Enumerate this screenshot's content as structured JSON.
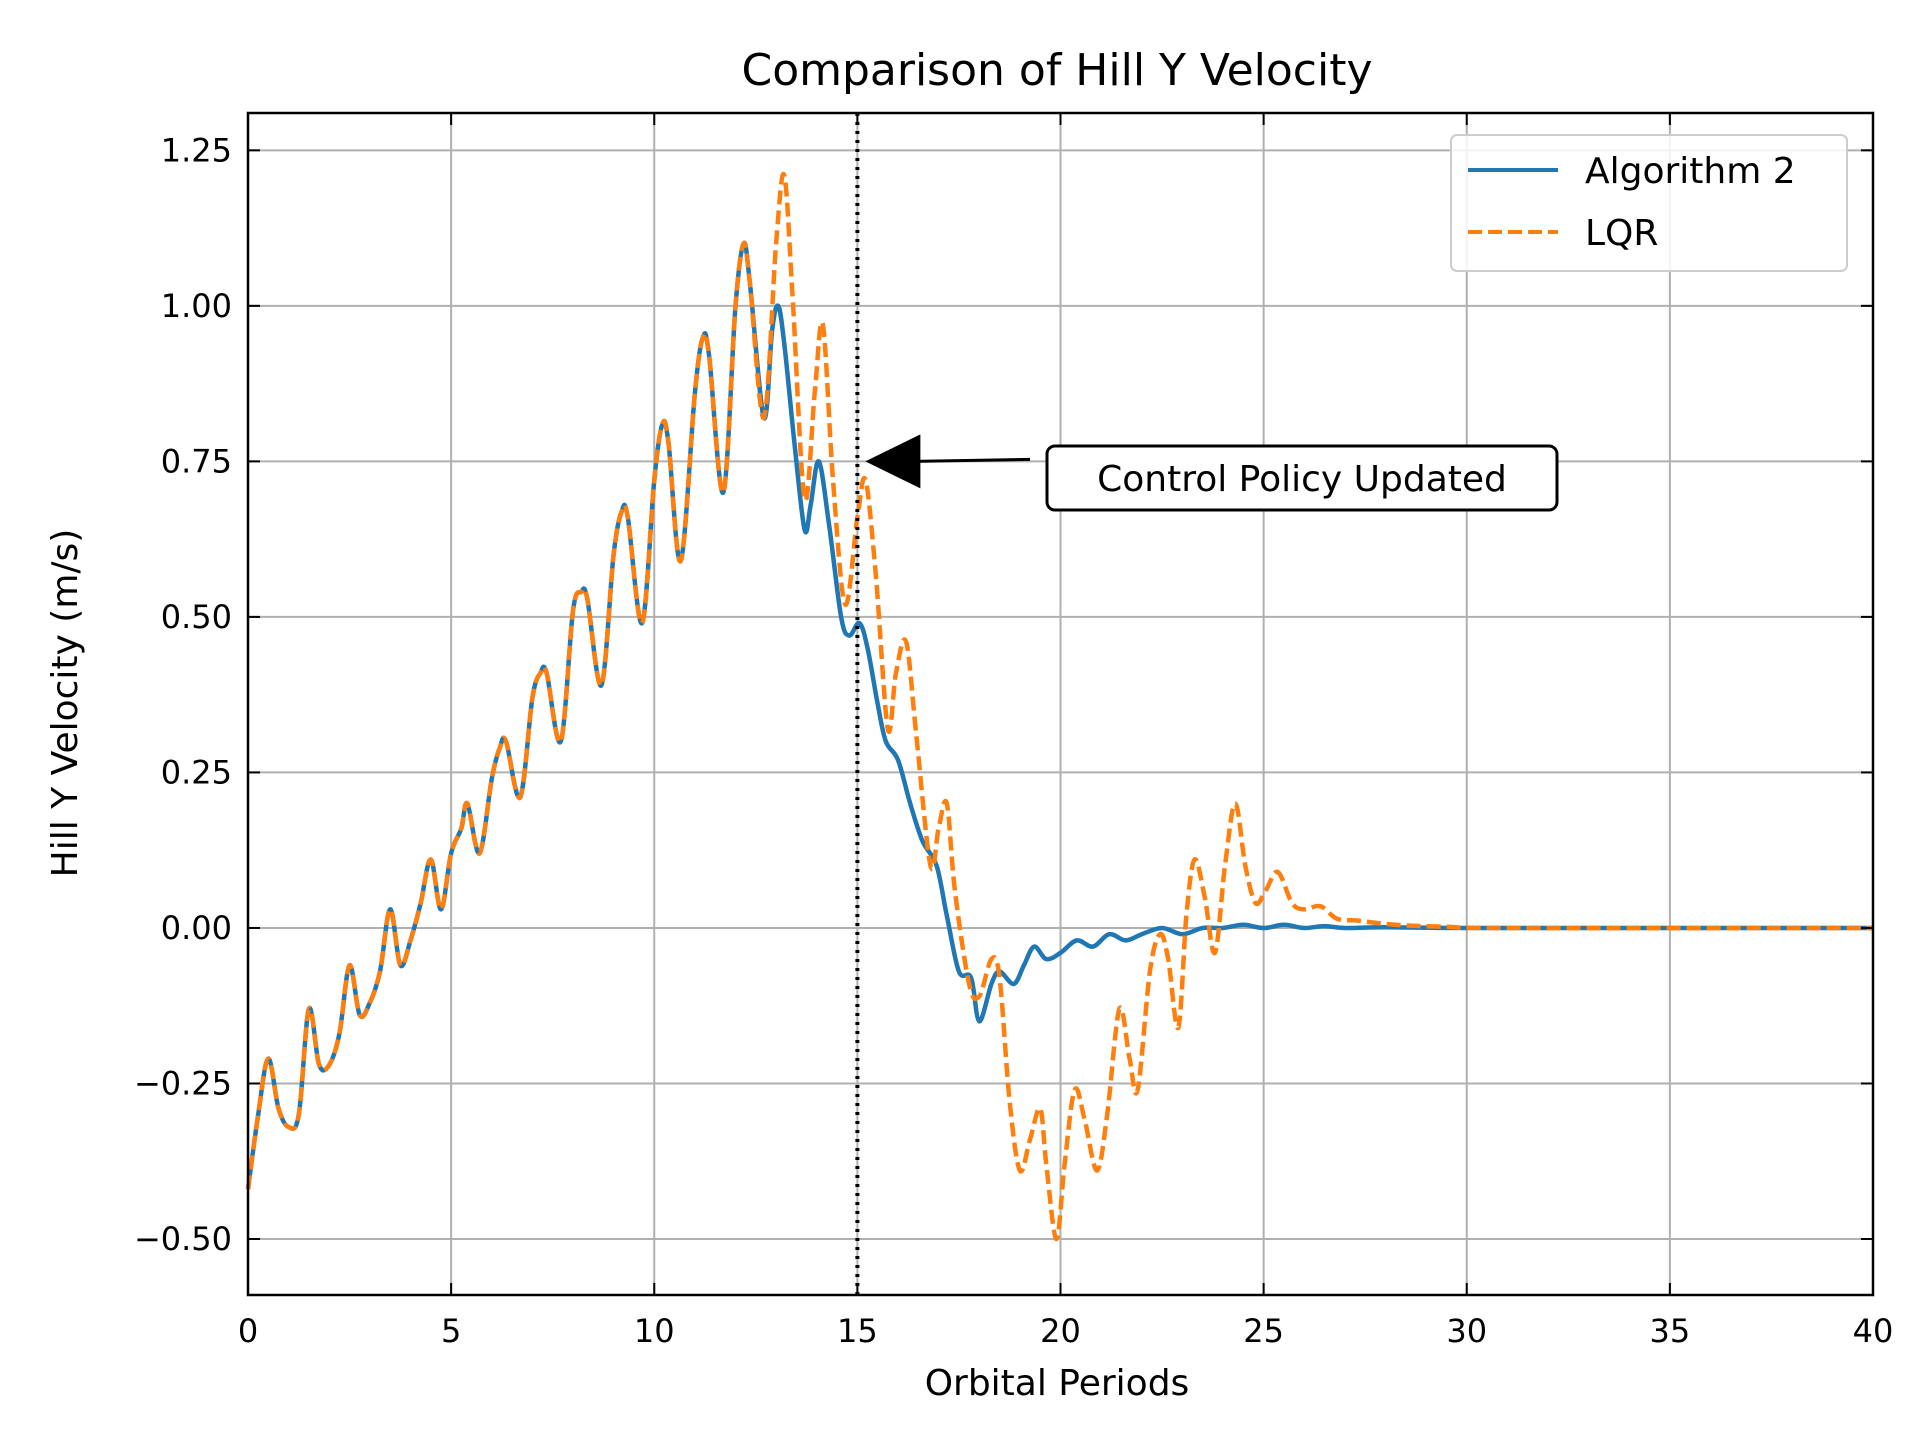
{
  "chart_data": {
    "type": "line",
    "title": "Comparison of Hill Y Velocity",
    "xlabel": "Orbital Periods",
    "ylabel": "Hill Y Velocity (m/s)",
    "xlim": [
      0,
      40
    ],
    "ylim": [
      -0.59,
      1.31
    ],
    "xticks": [
      0,
      5,
      10,
      15,
      20,
      25,
      30,
      35,
      40
    ],
    "xtick_labels": [
      "0",
      "5",
      "10",
      "15",
      "20",
      "25",
      "30",
      "35",
      "40"
    ],
    "yticks": [
      -0.5,
      -0.25,
      0,
      0.25,
      0.5,
      0.75,
      1.0,
      1.25
    ],
    "ytick_labels": [
      "−0.50",
      "−0.25",
      "0.00",
      "0.25",
      "0.50",
      "0.75",
      "1.00",
      "1.25"
    ],
    "grid": true,
    "legend_position": "top-right",
    "vline": {
      "x": 15,
      "style": "dotted",
      "color": "#000000"
    },
    "annotation": {
      "text": "Control Policy Updated",
      "arrow_to": [
        15,
        0.75
      ],
      "text_at": [
        19.6,
        0.725
      ]
    },
    "series": [
      {
        "name": "Algorithm 2",
        "color": "#1f77b4",
        "style": "solid",
        "points": [
          [
            0,
            -0.42
          ],
          [
            0.25,
            -0.3
          ],
          [
            0.5,
            -0.21
          ],
          [
            0.75,
            -0.29
          ],
          [
            1.0,
            -0.32
          ],
          [
            1.25,
            -0.3
          ],
          [
            1.5,
            -0.13
          ],
          [
            1.75,
            -0.22
          ],
          [
            2.0,
            -0.22
          ],
          [
            2.25,
            -0.17
          ],
          [
            2.5,
            -0.06
          ],
          [
            2.75,
            -0.14
          ],
          [
            3.0,
            -0.12
          ],
          [
            3.25,
            -0.07
          ],
          [
            3.5,
            0.03
          ],
          [
            3.75,
            -0.06
          ],
          [
            4.0,
            -0.02
          ],
          [
            4.25,
            0.04
          ],
          [
            4.5,
            0.11
          ],
          [
            4.75,
            0.03
          ],
          [
            5.0,
            0.12
          ],
          [
            5.25,
            0.16
          ],
          [
            5.4,
            0.2
          ],
          [
            5.7,
            0.12
          ],
          [
            6.0,
            0.24
          ],
          [
            6.2,
            0.29
          ],
          [
            6.35,
            0.3
          ],
          [
            6.7,
            0.21
          ],
          [
            7.0,
            0.37
          ],
          [
            7.2,
            0.41
          ],
          [
            7.35,
            0.41
          ],
          [
            7.7,
            0.3
          ],
          [
            8.0,
            0.51
          ],
          [
            8.2,
            0.54
          ],
          [
            8.35,
            0.53
          ],
          [
            8.7,
            0.39
          ],
          [
            9.0,
            0.6
          ],
          [
            9.2,
            0.67
          ],
          [
            9.35,
            0.66
          ],
          [
            9.7,
            0.49
          ],
          [
            10.0,
            0.72
          ],
          [
            10.2,
            0.81
          ],
          [
            10.35,
            0.78
          ],
          [
            10.65,
            0.59
          ],
          [
            11.0,
            0.86
          ],
          [
            11.2,
            0.95
          ],
          [
            11.35,
            0.92
          ],
          [
            11.7,
            0.7
          ],
          [
            12.0,
            1.0
          ],
          [
            12.2,
            1.1
          ],
          [
            12.35,
            1.04
          ],
          [
            12.7,
            0.82
          ],
          [
            12.9,
            0.96
          ],
          [
            13.05,
            1.0
          ],
          [
            13.2,
            0.94
          ],
          [
            13.45,
            0.78
          ],
          [
            13.7,
            0.64
          ],
          [
            13.85,
            0.68
          ],
          [
            14.05,
            0.75
          ],
          [
            14.3,
            0.65
          ],
          [
            14.6,
            0.5
          ],
          [
            14.8,
            0.47
          ],
          [
            15.05,
            0.49
          ],
          [
            15.25,
            0.45
          ],
          [
            15.5,
            0.36
          ],
          [
            15.7,
            0.3
          ],
          [
            16.0,
            0.27
          ],
          [
            16.3,
            0.2
          ],
          [
            16.6,
            0.14
          ],
          [
            16.95,
            0.1
          ],
          [
            17.2,
            0.02
          ],
          [
            17.5,
            -0.07
          ],
          [
            17.8,
            -0.08
          ],
          [
            18.0,
            -0.15
          ],
          [
            18.3,
            -0.09
          ],
          [
            18.5,
            -0.07
          ],
          [
            18.85,
            -0.09
          ],
          [
            19.1,
            -0.06
          ],
          [
            19.35,
            -0.03
          ],
          [
            19.65,
            -0.05
          ],
          [
            20.0,
            -0.04
          ],
          [
            20.4,
            -0.02
          ],
          [
            20.8,
            -0.03
          ],
          [
            21.2,
            -0.01
          ],
          [
            21.6,
            -0.02
          ],
          [
            22.0,
            -0.01
          ],
          [
            22.5,
            0.0
          ],
          [
            23.0,
            -0.01
          ],
          [
            23.5,
            0.0
          ],
          [
            24.0,
            0.0
          ],
          [
            24.5,
            0.005
          ],
          [
            25.0,
            0.0
          ],
          [
            25.5,
            0.005
          ],
          [
            26.0,
            0.0
          ],
          [
            26.5,
            0.003
          ],
          [
            27.0,
            0.0
          ],
          [
            28.0,
            0.001
          ],
          [
            30.0,
            0.0
          ],
          [
            35.0,
            0.0
          ],
          [
            40.0,
            0.0
          ]
        ]
      },
      {
        "name": "LQR",
        "color": "#ff7f0e",
        "style": "dashed",
        "points": [
          [
            0,
            -0.42
          ],
          [
            0.25,
            -0.3
          ],
          [
            0.5,
            -0.21
          ],
          [
            0.75,
            -0.29
          ],
          [
            1.0,
            -0.32
          ],
          [
            1.25,
            -0.3
          ],
          [
            1.5,
            -0.13
          ],
          [
            1.75,
            -0.22
          ],
          [
            2.0,
            -0.22
          ],
          [
            2.25,
            -0.17
          ],
          [
            2.5,
            -0.06
          ],
          [
            2.75,
            -0.14
          ],
          [
            3.0,
            -0.12
          ],
          [
            3.25,
            -0.07
          ],
          [
            3.5,
            0.03
          ],
          [
            3.75,
            -0.06
          ],
          [
            4.0,
            -0.02
          ],
          [
            4.25,
            0.04
          ],
          [
            4.5,
            0.11
          ],
          [
            4.75,
            0.03
          ],
          [
            5.0,
            0.12
          ],
          [
            5.25,
            0.16
          ],
          [
            5.4,
            0.2
          ],
          [
            5.7,
            0.12
          ],
          [
            6.0,
            0.24
          ],
          [
            6.2,
            0.29
          ],
          [
            6.35,
            0.3
          ],
          [
            6.7,
            0.21
          ],
          [
            7.0,
            0.37
          ],
          [
            7.2,
            0.41
          ],
          [
            7.35,
            0.41
          ],
          [
            7.7,
            0.3
          ],
          [
            8.0,
            0.51
          ],
          [
            8.2,
            0.54
          ],
          [
            8.35,
            0.53
          ],
          [
            8.7,
            0.39
          ],
          [
            9.0,
            0.6
          ],
          [
            9.2,
            0.67
          ],
          [
            9.35,
            0.66
          ],
          [
            9.7,
            0.49
          ],
          [
            10.0,
            0.72
          ],
          [
            10.2,
            0.81
          ],
          [
            10.35,
            0.78
          ],
          [
            10.65,
            0.59
          ],
          [
            11.0,
            0.86
          ],
          [
            11.2,
            0.95
          ],
          [
            11.35,
            0.92
          ],
          [
            11.7,
            0.7
          ],
          [
            12.0,
            1.0
          ],
          [
            12.2,
            1.1
          ],
          [
            12.35,
            1.04
          ],
          [
            12.7,
            0.82
          ],
          [
            13.0,
            1.1
          ],
          [
            13.2,
            1.21
          ],
          [
            13.4,
            1.02
          ],
          [
            13.7,
            0.69
          ],
          [
            13.95,
            0.86
          ],
          [
            14.15,
            0.97
          ],
          [
            14.4,
            0.72
          ],
          [
            14.7,
            0.52
          ],
          [
            15.0,
            0.66
          ],
          [
            15.2,
            0.72
          ],
          [
            15.45,
            0.57
          ],
          [
            15.75,
            0.32
          ],
          [
            15.95,
            0.41
          ],
          [
            16.2,
            0.46
          ],
          [
            16.45,
            0.31
          ],
          [
            16.8,
            0.1
          ],
          [
            17.0,
            0.16
          ],
          [
            17.2,
            0.2
          ],
          [
            17.4,
            0.06
          ],
          [
            17.75,
            -0.09
          ],
          [
            18.0,
            -0.11
          ],
          [
            18.3,
            -0.05
          ],
          [
            18.5,
            -0.08
          ],
          [
            18.75,
            -0.28
          ],
          [
            19.0,
            -0.39
          ],
          [
            19.25,
            -0.34
          ],
          [
            19.5,
            -0.29
          ],
          [
            19.65,
            -0.38
          ],
          [
            19.9,
            -0.5
          ],
          [
            20.1,
            -0.38
          ],
          [
            20.35,
            -0.26
          ],
          [
            20.6,
            -0.31
          ],
          [
            20.9,
            -0.39
          ],
          [
            21.15,
            -0.3
          ],
          [
            21.45,
            -0.13
          ],
          [
            21.7,
            -0.21
          ],
          [
            21.9,
            -0.26
          ],
          [
            22.2,
            -0.07
          ],
          [
            22.45,
            -0.01
          ],
          [
            22.65,
            -0.05
          ],
          [
            22.9,
            -0.16
          ],
          [
            23.1,
            0.02
          ],
          [
            23.3,
            0.11
          ],
          [
            23.55,
            0.05
          ],
          [
            23.8,
            -0.04
          ],
          [
            24.05,
            0.1
          ],
          [
            24.3,
            0.2
          ],
          [
            24.55,
            0.1
          ],
          [
            24.8,
            0.04
          ],
          [
            25.05,
            0.06
          ],
          [
            25.35,
            0.09
          ],
          [
            25.7,
            0.04
          ],
          [
            26.0,
            0.03
          ],
          [
            26.4,
            0.035
          ],
          [
            26.8,
            0.015
          ],
          [
            27.3,
            0.012
          ],
          [
            27.8,
            0.008
          ],
          [
            28.5,
            0.004
          ],
          [
            29.5,
            0.002
          ],
          [
            31.0,
            0.0
          ],
          [
            40.0,
            0.0
          ]
        ]
      }
    ]
  }
}
